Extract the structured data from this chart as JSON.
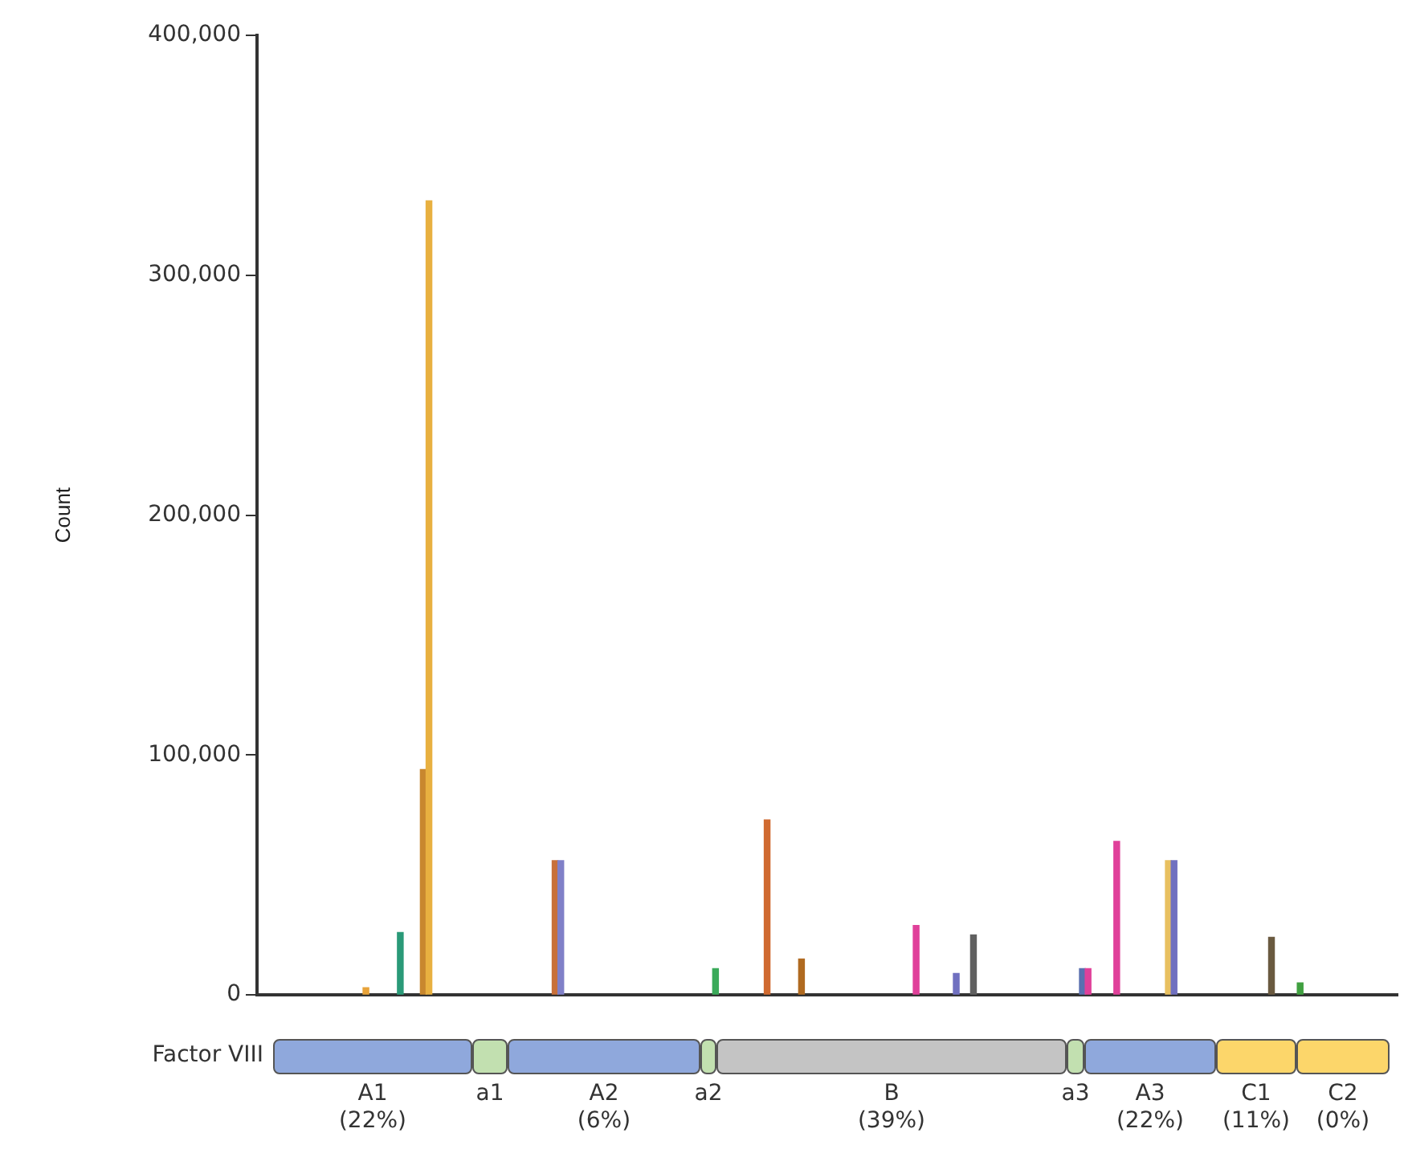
{
  "chart_data": {
    "type": "bar",
    "ylabel": "Count",
    "categories": [
      null,
      null,
      null,
      null,
      null,
      null,
      null,
      null,
      null,
      null,
      null,
      null,
      null,
      null,
      null,
      null,
      null,
      null,
      null,
      null,
      null,
      null,
      null,
      null,
      null,
      null,
      null,
      null,
      null,
      null,
      null,
      null,
      null,
      null,
      null,
      null,
      null,
      null,
      null,
      null,
      null,
      null,
      null,
      null,
      null,
      null,
      null,
      null,
      null,
      null,
      null,
      null,
      null,
      null,
      null,
      null,
      null,
      null,
      null,
      null,
      null,
      null,
      null,
      null,
      null,
      null,
      null,
      null,
      null,
      null,
      null,
      null,
      null,
      null,
      null,
      null,
      null,
      null,
      null,
      null,
      null,
      null,
      null,
      null,
      null,
      null,
      null,
      null,
      null,
      null,
      null,
      null,
      null,
      null,
      null,
      null,
      null,
      null,
      null,
      null,
      null,
      null,
      null,
      null,
      null,
      null,
      null,
      null,
      null,
      null,
      null,
      null,
      null,
      null,
      null,
      null,
      null,
      null,
      null,
      null,
      null,
      null,
      null,
      null,
      null,
      null,
      null,
      null,
      null,
      null,
      null,
      null,
      null,
      null,
      null,
      null,
      null,
      null,
      null,
      null,
      null,
      null,
      null,
      null,
      null,
      null,
      null,
      null,
      null,
      null,
      null,
      null,
      null,
      null,
      null,
      null,
      null,
      null,
      null,
      null,
      null,
      null,
      null,
      null,
      null,
      null,
      null,
      null,
      null,
      null,
      null,
      null,
      null,
      null,
      null,
      null,
      null,
      null,
      null,
      null,
      null,
      null,
      null,
      null,
      null,
      null,
      null,
      null,
      null,
      null,
      null,
      null,
      null,
      null,
      null,
      null,
      null,
      null,
      null,
      null
    ],
    "values": [
      null,
      null,
      null,
      null,
      null,
      null,
      null,
      null,
      null,
      null,
      null,
      null,
      null,
      null,
      null,
      null,
      null,
      null,
      null,
      3000,
      null,
      null,
      null,
      null,
      null,
      26000,
      null,
      null,
      null,
      94000,
      331000,
      null,
      null,
      null,
      null,
      null,
      null,
      null,
      null,
      null,
      null,
      null,
      null,
      null,
      null,
      null,
      null,
      null,
      null,
      null,
      null,
      null,
      56000,
      56000,
      null,
      null,
      null,
      null,
      null,
      null,
      null,
      null,
      null,
      null,
      null,
      null,
      null,
      null,
      null,
      null,
      null,
      null,
      null,
      null,
      null,
      null,
      null,
      null,
      null,
      null,
      11000,
      null,
      null,
      null,
      null,
      null,
      null,
      null,
      null,
      73000,
      null,
      null,
      null,
      null,
      null,
      15000,
      null,
      null,
      null,
      null,
      null,
      null,
      null,
      null,
      null,
      null,
      null,
      null,
      null,
      null,
      null,
      null,
      null,
      null,
      null,
      29000,
      null,
      null,
      null,
      null,
      null,
      null,
      9000,
      null,
      null,
      25000,
      null,
      null,
      null,
      null,
      null,
      null,
      null,
      null,
      null,
      null,
      null,
      null,
      null,
      null,
      null,
      null,
      null,
      null,
      11000,
      11000,
      null,
      null,
      null,
      null,
      64000,
      null,
      null,
      null,
      null,
      null,
      null,
      null,
      null,
      56000,
      56000,
      null,
      null,
      null,
      null,
      null,
      null,
      null,
      null,
      null,
      null,
      null,
      null,
      null,
      null,
      null,
      null,
      24000,
      null,
      null,
      null,
      null,
      5000,
      null,
      null,
      null,
      null,
      null,
      null,
      null,
      null,
      null,
      null,
      null,
      null,
      null,
      null,
      null,
      null,
      null
    ],
    "colors": [
      null,
      null,
      null,
      null,
      null,
      null,
      null,
      null,
      null,
      null,
      null,
      null,
      null,
      null,
      null,
      null,
      null,
      null,
      null,
      "#e8a33a",
      null,
      null,
      null,
      null,
      null,
      "#2a9a78",
      null,
      null,
      null,
      "#c8872e",
      "#e8b040",
      null,
      null,
      null,
      null,
      null,
      null,
      null,
      null,
      null,
      null,
      null,
      null,
      null,
      null,
      null,
      null,
      null,
      null,
      null,
      null,
      null,
      "#c8703a",
      "#8080c8",
      null,
      null,
      null,
      null,
      null,
      null,
      null,
      null,
      null,
      null,
      null,
      null,
      null,
      null,
      null,
      null,
      null,
      null,
      null,
      null,
      null,
      null,
      null,
      null,
      null,
      null,
      "#3aaa5a",
      null,
      null,
      null,
      null,
      null,
      null,
      null,
      null,
      "#d06a30",
      null,
      null,
      null,
      null,
      null,
      "#b06a20",
      null,
      null,
      null,
      null,
      null,
      null,
      null,
      null,
      null,
      null,
      null,
      null,
      null,
      null,
      null,
      null,
      null,
      null,
      null,
      "#e0409a",
      null,
      null,
      null,
      null,
      null,
      null,
      "#7070c0",
      null,
      null,
      "#606060",
      null,
      null,
      null,
      null,
      null,
      null,
      null,
      null,
      null,
      null,
      null,
      null,
      null,
      null,
      null,
      null,
      null,
      null,
      "#5a70b0",
      "#e0409a",
      null,
      null,
      null,
      null,
      "#e0409a",
      null,
      null,
      null,
      null,
      null,
      null,
      null,
      null,
      "#e8c060",
      "#7070c0",
      null,
      null,
      null,
      null,
      null,
      null,
      null,
      null,
      null,
      null,
      null,
      null,
      null,
      null,
      null,
      null,
      "#6a5a40",
      null,
      null,
      null,
      null,
      "#40a040",
      null,
      null,
      null,
      null,
      null,
      null,
      null,
      null,
      null,
      null,
      null,
      null,
      null,
      null,
      null,
      null,
      null
    ],
    "ylim": [
      0,
      400000
    ],
    "yticks": [
      {
        "value": 0,
        "label": "0"
      },
      {
        "value": 100000,
        "label": "100,000"
      },
      {
        "value": 200000,
        "label": "200,000"
      },
      {
        "value": 300000,
        "label": "300,000"
      },
      {
        "value": 400000,
        "label": "400,000"
      }
    ],
    "tick_labels": "y",
    "legend": false,
    "grid": false,
    "annotations": [
      "Factor VIII",
      "A1 (22%)",
      "a1",
      "A2 (6%)",
      "a2",
      "B (39%)",
      "a3",
      "A3 (22%)",
      "C1 (11%)",
      "C2 (0%)"
    ]
  }
}
